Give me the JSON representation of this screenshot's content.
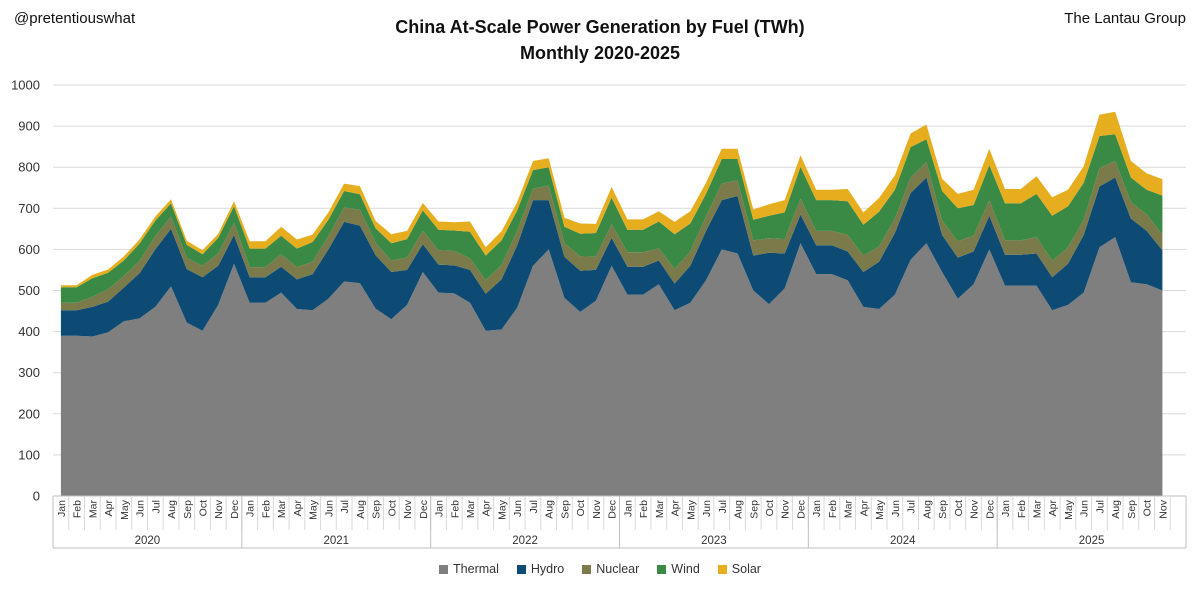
{
  "header": {
    "handle": "@pretentiouswhat",
    "brand": "The Lantau Group",
    "title_line1": "China At-Scale Power Generation by Fuel (TWh)",
    "title_line2": "Monthly 2020-2025"
  },
  "chart_data": {
    "type": "area",
    "stacked": true,
    "title": "China At-Scale Power Generation by Fuel (TWh)",
    "subtitle": "Monthly 2020-2025",
    "ylabel": "TWh",
    "ylim": [
      0,
      1000
    ],
    "yticks": [
      0,
      100,
      200,
      300,
      400,
      500,
      600,
      700,
      800,
      900,
      1000
    ],
    "grid": true,
    "legend_position": "bottom",
    "years": [
      "2020",
      "2021",
      "2022",
      "2023",
      "2024",
      "2025"
    ],
    "month_labels": [
      "Jan",
      "Feb",
      "Mar",
      "Apr",
      "May",
      "Jun",
      "Jul",
      "Aug",
      "Sep",
      "Oct",
      "Nov",
      "Dec"
    ],
    "series": [
      {
        "name": "Thermal",
        "color": "#7f7f7f",
        "values": [
          390,
          390,
          388,
          398,
          425,
          432,
          460,
          510,
          422,
          402,
          465,
          565,
          470,
          470,
          495,
          455,
          452,
          480,
          522,
          518,
          456,
          430,
          465,
          545,
          495,
          493,
          470,
          402,
          405,
          458,
          560,
          600,
          482,
          448,
          475,
          560,
          490,
          490,
          515,
          452,
          470,
          525,
          600,
          590,
          500,
          467,
          505,
          615,
          540,
          540,
          525,
          460,
          455,
          490,
          575,
          615,
          545,
          480,
          515,
          600,
          512,
          512,
          512,
          452,
          465,
          495,
          605,
          630,
          520,
          515,
          500
        ]
      },
      {
        "name": "Hydro",
        "color": "#0d4b75",
        "values": [
          62,
          62,
          72,
          75,
          82,
          110,
          140,
          140,
          130,
          130,
          95,
          70,
          62,
          62,
          63,
          72,
          88,
          120,
          145,
          140,
          130,
          115,
          85,
          68,
          68,
          68,
          80,
          90,
          122,
          152,
          160,
          120,
          100,
          100,
          75,
          68,
          68,
          68,
          58,
          65,
          90,
          120,
          120,
          140,
          85,
          125,
          85,
          70,
          70,
          70,
          70,
          85,
          115,
          150,
          162,
          160,
          90,
          100,
          80,
          82,
          75,
          75,
          78,
          80,
          100,
          140,
          148,
          145,
          155,
          130,
          98
        ]
      },
      {
        "name": "Nuclear",
        "color": "#7a7a4a",
        "values": [
          18,
          18,
          25,
          30,
          28,
          30,
          32,
          30,
          27,
          28,
          30,
          30,
          25,
          25,
          30,
          30,
          30,
          32,
          35,
          38,
          30,
          28,
          30,
          32,
          35,
          35,
          28,
          33,
          35,
          35,
          28,
          35,
          33,
          35,
          32,
          33,
          35,
          35,
          30,
          35,
          35,
          35,
          40,
          38,
          37,
          35,
          35,
          38,
          35,
          35,
          40,
          40,
          37,
          35,
          37,
          38,
          35,
          40,
          38,
          38,
          35,
          35,
          40,
          40,
          40,
          37,
          45,
          40,
          40,
          40,
          38
        ]
      },
      {
        "name": "Wind",
        "color": "#3a8a45",
        "values": [
          38,
          38,
          45,
          40,
          38,
          42,
          38,
          32,
          32,
          28,
          38,
          40,
          45,
          45,
          45,
          45,
          48,
          40,
          40,
          38,
          35,
          42,
          45,
          50,
          50,
          50,
          65,
          60,
          60,
          50,
          45,
          45,
          40,
          55,
          58,
          65,
          55,
          55,
          65,
          85,
          68,
          55,
          60,
          52,
          50,
          55,
          65,
          78,
          75,
          75,
          82,
          75,
          85,
          70,
          75,
          55,
          72,
          80,
          75,
          85,
          90,
          90,
          105,
          110,
          100,
          90,
          78,
          65,
          60,
          60,
          95
        ]
      },
      {
        "name": "Solar",
        "color": "#e6ae1f",
        "values": [
          5,
          5,
          8,
          8,
          10,
          10,
          10,
          10,
          10,
          10,
          10,
          12,
          18,
          18,
          22,
          22,
          18,
          18,
          18,
          20,
          18,
          22,
          20,
          18,
          20,
          20,
          25,
          20,
          22,
          20,
          22,
          22,
          22,
          25,
          22,
          26,
          25,
          25,
          25,
          30,
          30,
          27,
          25,
          25,
          25,
          28,
          30,
          28,
          25,
          25,
          30,
          30,
          33,
          35,
          33,
          36,
          30,
          35,
          37,
          40,
          35,
          35,
          43,
          45,
          40,
          40,
          52,
          55,
          40,
          40,
          40
        ]
      }
    ]
  }
}
